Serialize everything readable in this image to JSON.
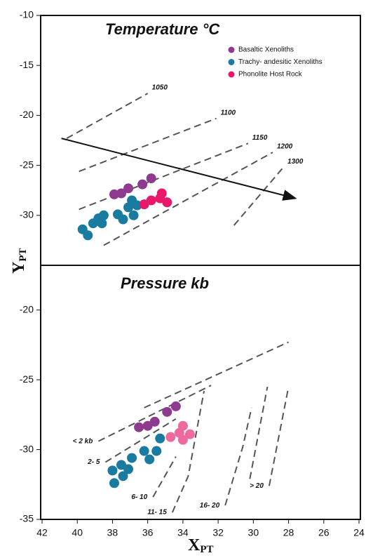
{
  "chart_data": [
    {
      "type": "scatter",
      "title": "Temperature °C",
      "ylabel": "Y",
      "ylabel_sub": "PT",
      "xlim": [
        42,
        24
      ],
      "ylim": [
        -35,
        -10
      ],
      "yticks": [
        -10,
        -15,
        -20,
        -25,
        -30
      ],
      "series": [
        {
          "name": "Basaltic Xenoliths",
          "color": "#8e3a8e",
          "x": [
            37.9,
            37.5,
            37.1,
            36.3,
            35.8
          ],
          "y": [
            -27.9,
            -27.8,
            -27.3,
            -26.9,
            -26.3
          ]
        },
        {
          "name": "Trachy- andesitic Xenoliths",
          "color": "#1a7ba0",
          "x": [
            39.7,
            39.4,
            39.1,
            38.8,
            38.5,
            38.6,
            37.7,
            37.4,
            37.1,
            36.8,
            36.9,
            36.6
          ],
          "y": [
            -31.4,
            -32.0,
            -30.8,
            -30.3,
            -30.0,
            -30.8,
            -29.9,
            -30.4,
            -29.2,
            -30.0,
            -28.5,
            -29.0
          ]
        },
        {
          "name": "Phonolite Host Rock",
          "color": "#e8196b",
          "x": [
            36.2,
            35.8,
            35.3,
            35.2,
            34.9
          ],
          "y": [
            -28.9,
            -28.5,
            -28.3,
            -27.8,
            -28.7
          ]
        }
      ],
      "lines": [
        {
          "label": "1050",
          "x": [
            40.6,
            36.0
          ],
          "y": [
            -22.3,
            -17.8
          ]
        },
        {
          "label": "1100",
          "x": [
            39.9,
            32.1
          ],
          "y": [
            -25.6,
            -20.3
          ]
        },
        {
          "label": "1150",
          "x": [
            39.9,
            30.3
          ],
          "y": [
            -29.4,
            -22.8
          ]
        },
        {
          "label": "1200",
          "x": [
            38.5,
            28.9
          ],
          "y": [
            -33.0,
            -23.7
          ]
        },
        {
          "label": "1300",
          "x": [
            31.1,
            28.3
          ],
          "y": [
            -31.0,
            -25.2
          ]
        }
      ],
      "arrow": {
        "x": [
          40.9,
          27.6
        ],
        "y": [
          -22.3,
          -28.3
        ]
      }
    },
    {
      "type": "scatter",
      "title": "Pressure kb",
      "xlabel": "X",
      "xlabel_sub": "PT",
      "xlim": [
        42,
        24
      ],
      "ylim": [
        -35,
        -16.8
      ],
      "yticks": [
        -20,
        -25,
        -30,
        -35
      ],
      "xticks": [
        42,
        40,
        38,
        36,
        34,
        32,
        30,
        28,
        26,
        24
      ],
      "series": [
        {
          "color": "#8e3a8e",
          "x": [
            36.5,
            36.0,
            35.6,
            34.9,
            34.4
          ],
          "y": [
            -28.4,
            -28.3,
            -28.0,
            -27.3,
            -26.9
          ]
        },
        {
          "color": "#1a7ba0",
          "x": [
            38.0,
            37.5,
            37.9,
            37.4,
            36.9,
            37.1,
            36.2,
            35.9,
            35.5,
            35.3
          ],
          "y": [
            -31.5,
            -31.1,
            -32.4,
            -31.9,
            -30.6,
            -31.4,
            -30.1,
            -30.7,
            -30.1,
            -29.2
          ]
        },
        {
          "color": "#ec6aa0",
          "x": [
            34.7,
            34.2,
            34.0,
            33.6,
            34.0
          ],
          "y": [
            -29.1,
            -28.8,
            -28.3,
            -28.9,
            -29.3
          ]
        }
      ],
      "lines": [
        {
          "label": "< 2 kb",
          "x": [
            38.8,
            32.4
          ],
          "y": [
            -29.4,
            -25.4
          ]
        },
        {
          "x": [
            36.2,
            28.0
          ],
          "y": [
            -27.0,
            -22.3
          ]
        },
        {
          "label": "2- 5",
          "x": [
            38.4,
            34.4
          ],
          "y": [
            -30.9,
            -27.8
          ]
        },
        {
          "label": "6- 10",
          "x": [
            35.7,
            34.4
          ],
          "y": [
            -33.4,
            -30.5
          ]
        },
        {
          "label": "11- 15",
          "x": [
            34.6,
            33.7,
            32.8
          ],
          "y": [
            -34.5,
            -31.9,
            -25.8
          ]
        },
        {
          "label": "16- 20",
          "x": [
            31.6,
            30.6,
            30.1
          ],
          "y": [
            -34.0,
            -29.8,
            -27.0
          ]
        },
        {
          "x": [
            30.2,
            29.2
          ],
          "y": [
            -32.1,
            -25.5
          ]
        },
        {
          "label": "> 20",
          "x": [
            29.1,
            28.0
          ],
          "y": [
            -32.6,
            -25.5
          ]
        }
      ]
    }
  ]
}
